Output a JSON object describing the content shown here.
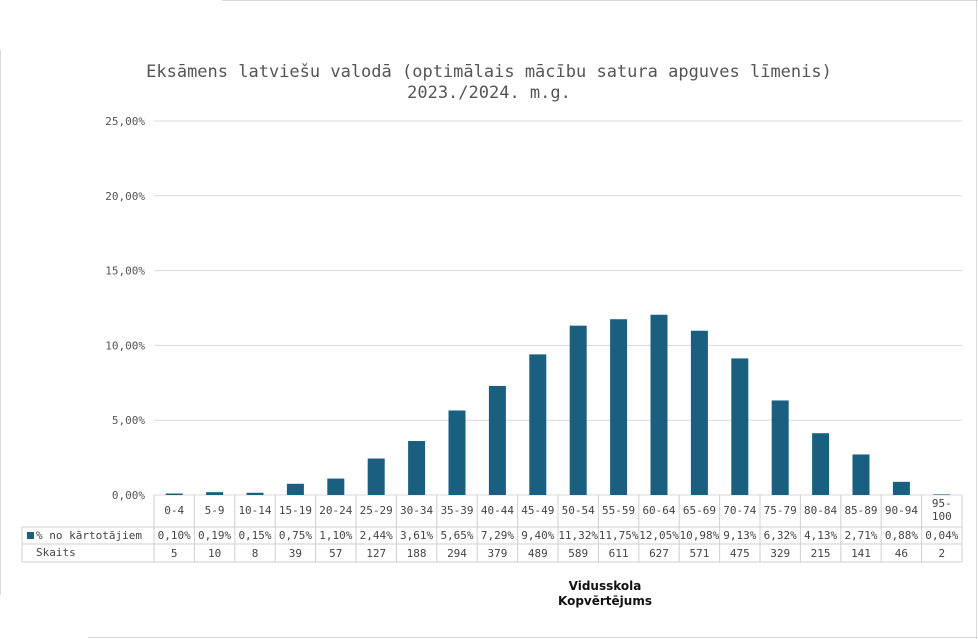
{
  "chart_data": {
    "type": "bar",
    "title": "Eksāmens latviešu valodā (optimālais mācību satura apguves līmenis)\n2023./2024. m.g.",
    "categories": [
      "0-4",
      "5-9",
      "10-14",
      "15-19",
      "20-24",
      "25-29",
      "30-34",
      "35-39",
      "40-44",
      "45-49",
      "50-54",
      "55-59",
      "60-64",
      "65-69",
      "70-74",
      "75-79",
      "80-84",
      "85-89",
      "90-94",
      "95-\n100"
    ],
    "series": [
      {
        "name": "% no kārtotājiem",
        "values": [
          0.1,
          0.19,
          0.15,
          0.75,
          1.1,
          2.44,
          3.61,
          5.65,
          7.29,
          9.4,
          11.32,
          11.75,
          12.05,
          10.98,
          9.13,
          6.32,
          4.13,
          2.71,
          0.88,
          0.04
        ],
        "labels": [
          "0,10%",
          "0,19%",
          "0,15%",
          "0,75%",
          "1,10%",
          "2,44%",
          "3,61%",
          "5,65%",
          "7,29%",
          "9,40%",
          "11,32%",
          "11,75%",
          "12,05%",
          "10,98%",
          "9,13%",
          "6,32%",
          "4,13%",
          "2,71%",
          "0,88%",
          "0,04%"
        ],
        "color": "#1a5f80"
      }
    ],
    "table_rows": [
      {
        "name": "Skaits",
        "values": [
          "5",
          "10",
          "8",
          "39",
          "57",
          "127",
          "188",
          "294",
          "379",
          "489",
          "589",
          "611",
          "627",
          "571",
          "475",
          "329",
          "215",
          "141",
          "46",
          "2"
        ]
      }
    ],
    "y_ticks": [
      "0,00%",
      "5,00%",
      "10,00%",
      "15,00%",
      "20,00%",
      "25,00%"
    ],
    "ylim": [
      0,
      25
    ],
    "grid": true,
    "x_title_line1": "Vidusskola",
    "x_title_line2": "Kopvērtējums"
  }
}
